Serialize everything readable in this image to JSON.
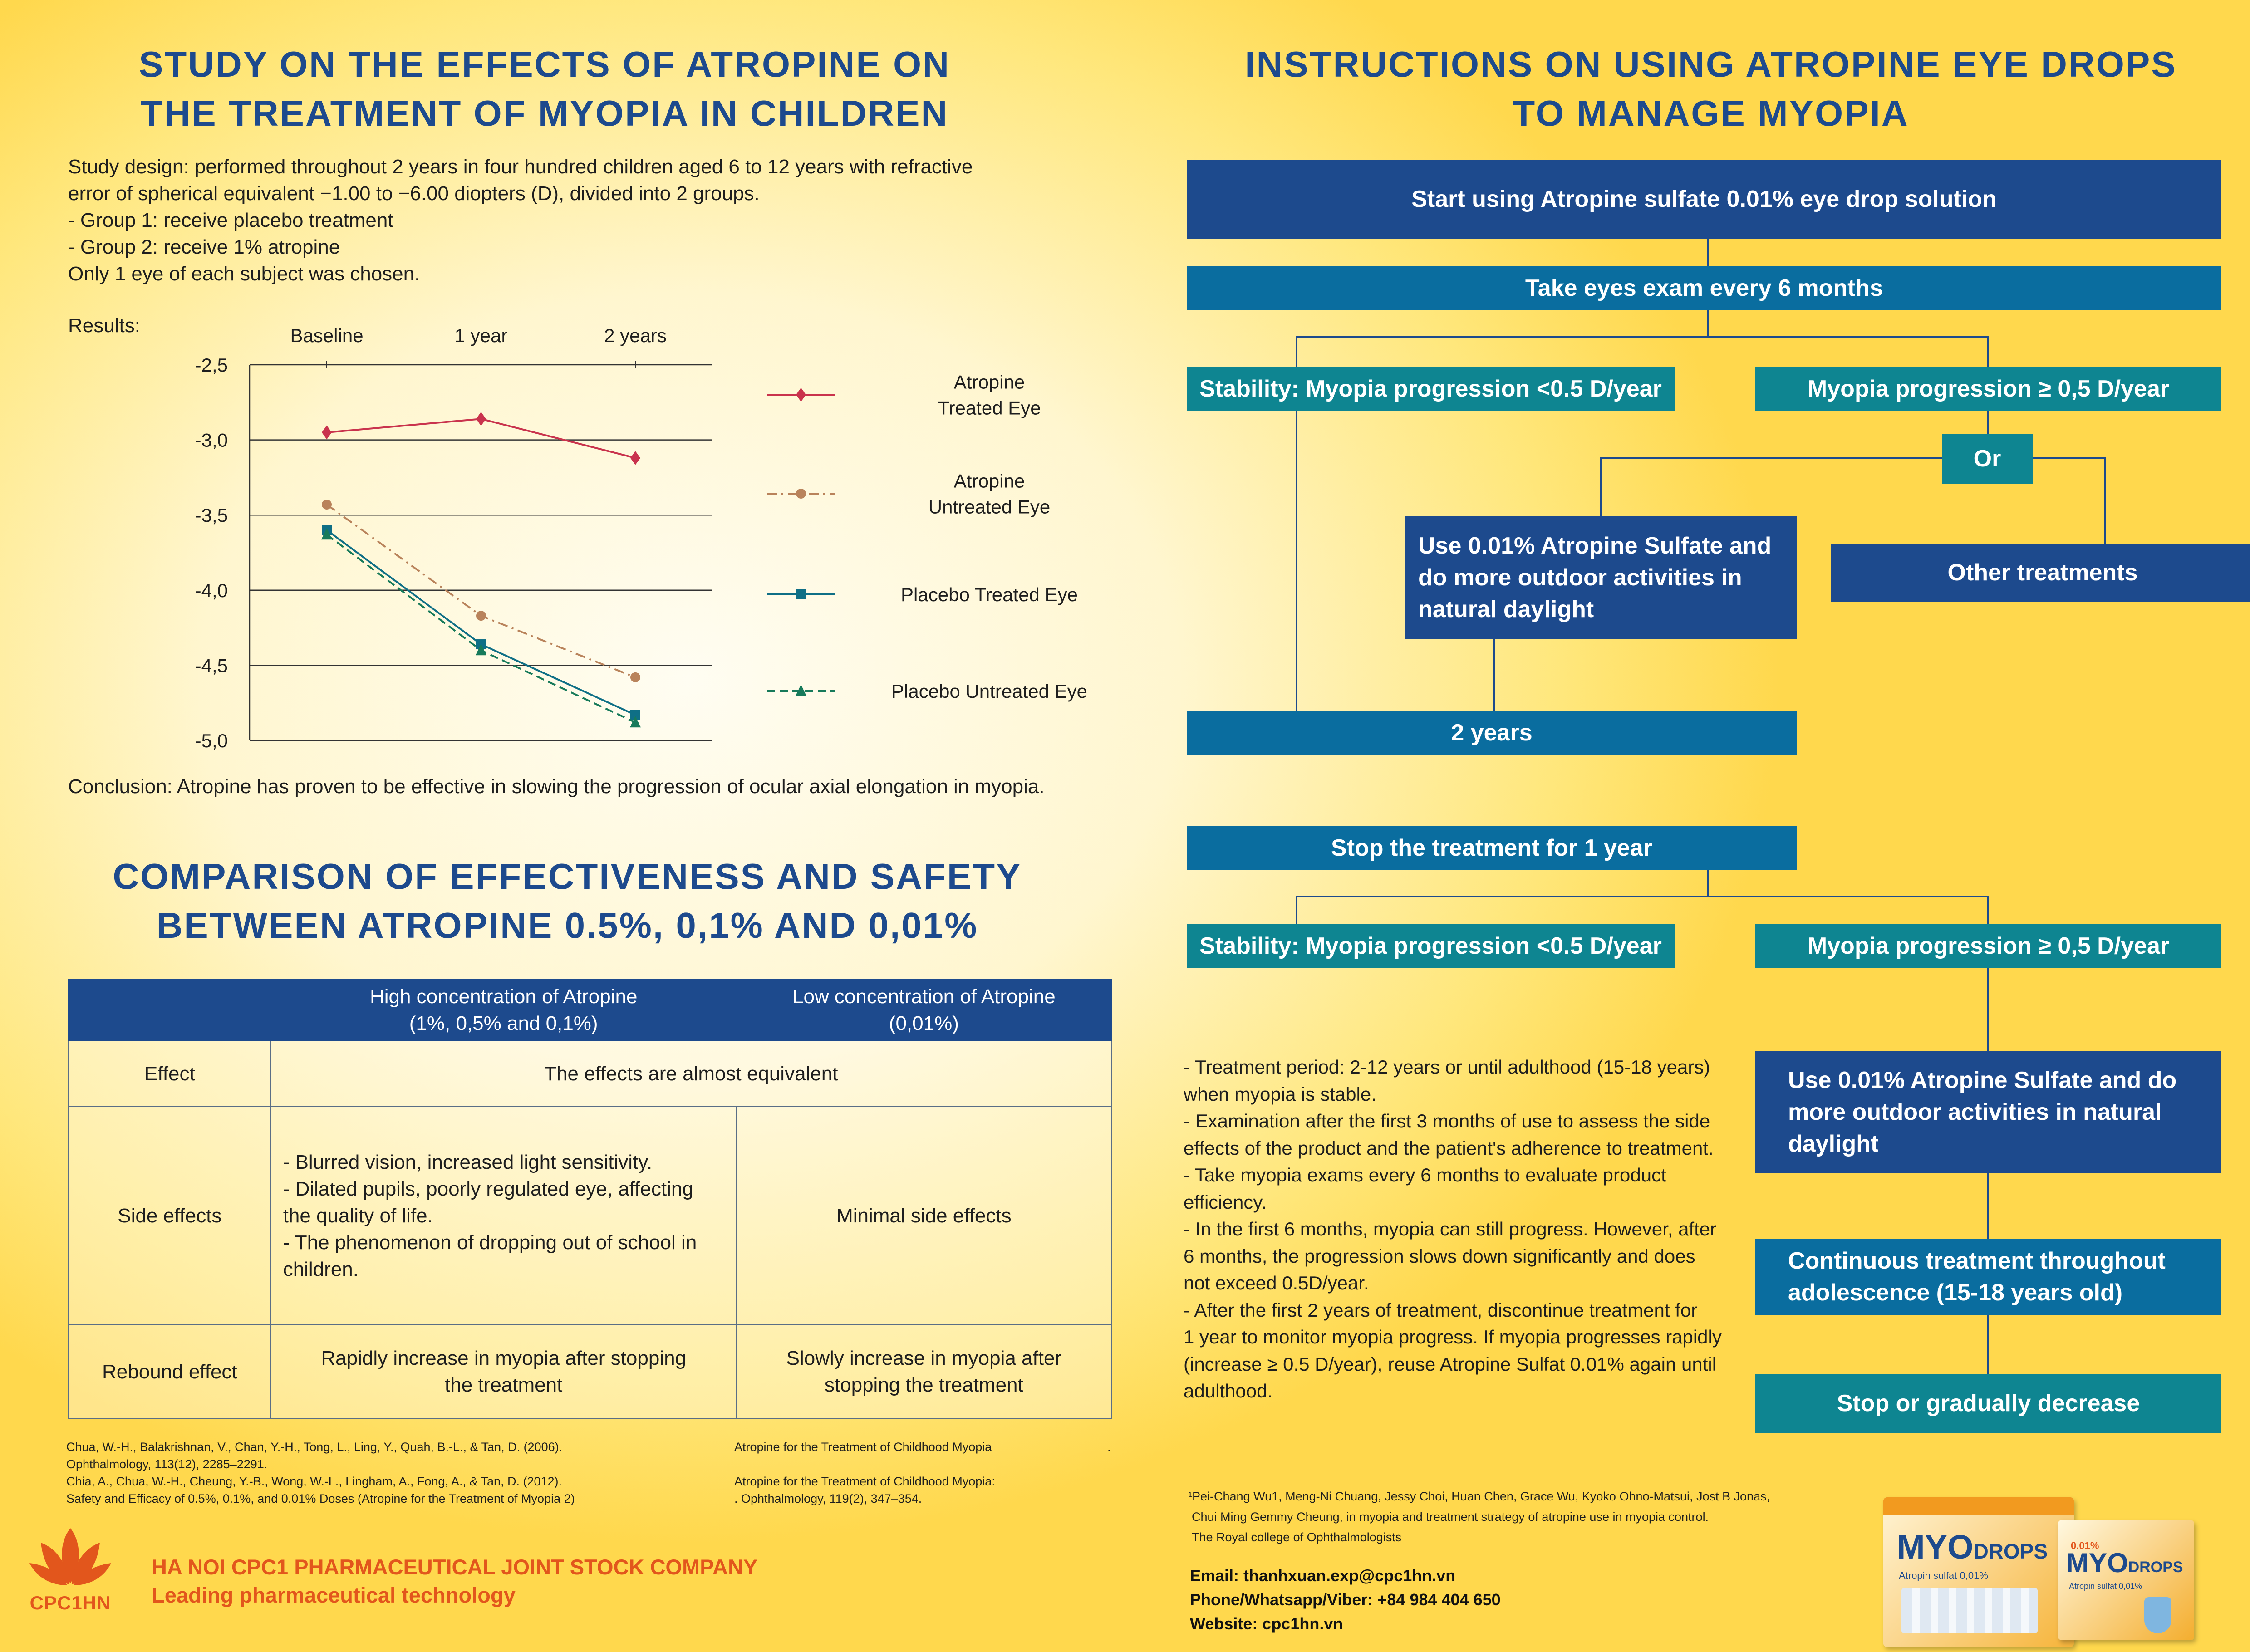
{
  "left_title": [
    "STUDY ON THE EFFECTS OF ATROPINE ON",
    "THE TREATMENT OF MYOPIA IN CHILDREN"
  ],
  "study_design": [
    "Study design: performed throughout 2 years in four hundred children aged 6 to 12 years with refractive",
    "error of spherical equivalent −1.00 to −6.00 diopters (D), divided into 2 groups.",
    "- Group 1: receive placebo treatment",
    "- Group 2: receive 1% atropine",
    "Only 1 eye of each subject was chosen."
  ],
  "results_label": "Results:",
  "chart_data": {
    "type": "line",
    "categories": [
      "Baseline",
      "1 year",
      "2 years"
    ],
    "y_tick_labels": [
      "-2,5",
      "-3,0",
      "-3,5",
      "-4,0",
      "-4,5",
      "-5,0"
    ],
    "ylim": [
      -5.0,
      -2.5
    ],
    "grid": true,
    "legend_position": "right",
    "series": [
      {
        "name": "Atropine Treated Eye",
        "legend_lines": [
          "Atropine",
          "Treated Eye"
        ],
        "values": [
          -2.95,
          -2.86,
          -3.12
        ],
        "color": "#c9334d",
        "marker": "diamond",
        "dash": "solid"
      },
      {
        "name": "Atropine Untreated Eye",
        "legend_lines": [
          "Atropine",
          "Untreated Eye"
        ],
        "values": [
          -3.43,
          -4.17,
          -4.58
        ],
        "color": "#b9835b",
        "marker": "circle",
        "dash": "dashdot"
      },
      {
        "name": "Placebo Treated Eye",
        "legend_lines": [
          "Placebo Treated Eye"
        ],
        "values": [
          -3.6,
          -4.36,
          -4.83
        ],
        "color": "#0f6f86",
        "marker": "square",
        "dash": "solid"
      },
      {
        "name": "Placebo Untreated Eye",
        "legend_lines": [
          "Placebo Untreated Eye"
        ],
        "values": [
          -3.63,
          -4.4,
          -4.88
        ],
        "color": "#177a5a",
        "marker": "triangle",
        "dash": "dashed"
      }
    ]
  },
  "conclusion": "Conclusion: Atropine has proven to be effective in slowing the progression of ocular axial elongation in myopia.",
  "comparison_title": [
    "COMPARISON OF EFFECTIVENESS AND SAFETY",
    "BETWEEN ATROPINE 0.5%, 0,1% AND 0,01%"
  ],
  "table": {
    "headers": [
      "",
      "High concentration of Atropine\n(1%, 0,5% and 0,1%)",
      "Low concentration of Atropine\n(0,01%)"
    ],
    "effect_label": "Effect",
    "effect_value": "The effects are almost equivalent",
    "side_label": "Side effects",
    "side_high": "- Blurred vision, increased light sensitivity.\n- Dilated pupils, poorly regulated eye, affecting the quality of life.\n- The phenomenon of dropping out of school in children.",
    "side_low": "Minimal side effects",
    "rebound_label": "Rebound effect",
    "rebound_high": "Rapidly increase in myopia after stopping\nthe treatment",
    "rebound_low": "Slowly increase in myopia after\nstopping the treatment"
  },
  "references_left": [
    "Chua, W.-H., Balakrishnan, V., Chan, Y.-H., Tong, L., Ling, Y., Quah, B.-L., & Tan, D. (2006).",
    "Ophthalmology, 113(12), 2285–2291.",
    "Chia, A., Chua, W.-H., Cheung, Y.-B., Wong, W.-L., Lingham, A., Fong, A., & Tan, D. (2012).",
    "Safety and Efficacy of 0.5%, 0.1%, and 0.01% Doses (Atropine for the Treatment of Myopia 2)"
  ],
  "references_right": [
    "Atropine for the Treatment of Childhood Myopia",
    "",
    "Atropine for the Treatment of Childhood Myopia:",
    ". Ophthalmology, 119(2), 347–354."
  ],
  "ref_dot": ".",
  "company": {
    "logo_text": "CPC1HN",
    "name": "HA NOI CPC1 PHARMACEUTICAL JOINT STOCK COMPANY",
    "tagline": "Leading pharmaceutical technology"
  },
  "right_title": [
    "INSTRUCTIONS ON USING ATROPINE EYE DROPS",
    "TO MANAGE MYOPIA"
  ],
  "flow": {
    "start": "Start using Atropine sulfate 0.01% eye drop solution",
    "exam": "Take eyes exam every 6 months",
    "stability1": "Stability: Myopia progression <0.5 D/year",
    "progression1": "Myopia progression ≥ 0,5 D/year",
    "or": "Or",
    "use1": "Use 0.01% Atropine Sulfate and do more outdoor activities in natural daylight",
    "other": "Other treatments",
    "two_years": "2 years",
    "stop1": "Stop the treatment for 1 year",
    "stability2": "Stability: Myopia progression <0.5 D/year",
    "progression2": "Myopia progression ≥ 0,5 D/year",
    "use2": "Use 0.01% Atropine Sulfate and do more outdoor activities in natural daylight",
    "continuous": "Continuous treatment throughout adolescence (15-18 years old)",
    "stop2": "Stop or gradually decrease"
  },
  "notes": [
    "- Treatment period: 2-12 years or until adulthood (15-18 years)",
    "when myopia is stable.",
    "- Examination after the first 3 months of use to assess the side",
    "effects of the product and the patient's adherence to treatment.",
    "- Take myopia exams every 6 months to evaluate product",
    "efficiency.",
    "- In the first 6 months, myopia can still progress. However, after",
    "6 months, the progression slows down significantly and does",
    "not exceed 0.5D/year.",
    "- After the first 2 years of treatment, discontinue treatment for",
    "1 year to monitor myopia progress. If myopia progresses rapidly",
    "(increase ≥ 0.5 D/year), reuse Atropine Sulfat 0.01% again until",
    "adulthood."
  ],
  "refs_right_bottom": [
    "¹Pei-Chang Wu1, Meng-Ni Chuang, Jessy Choi, Huan Chen, Grace Wu, Kyoko Ohno-Matsui, Jost B Jonas,",
    "Chui Ming Gemmy Cheung, in myopia and treatment strategy of atropine use in myopia control.",
    "The Royal college of Ophthalmologists"
  ],
  "contact": {
    "email": "Email: thanhxuan.exp@cpc1hn.vn",
    "phone": "Phone/Whatsapp/Viber: +84 984 404 650",
    "website": "Website: cpc1hn.vn"
  },
  "product": {
    "brand_left": "MYO",
    "brand_right": "DROPS",
    "badge": "0.01%",
    "subtitle": "Atropin sulfat 0,01%"
  },
  "colors": {
    "navy": "#1d4a8d",
    "blue": "#0a6d9f",
    "teal": "#0e8591",
    "company_orange": "#e2561c"
  }
}
